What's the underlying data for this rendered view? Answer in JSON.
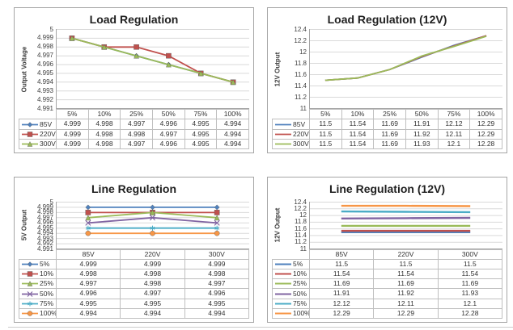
{
  "page": {
    "background": "#ffffff"
  },
  "chart_data": [
    {
      "type": "line",
      "title": "Load Regulation",
      "ylabel": "Output Voltage",
      "xlabel": "",
      "categories": [
        "5%",
        "10%",
        "25%",
        "50%",
        "75%",
        "100%"
      ],
      "ylim": [
        4.991,
        5
      ],
      "yticks": [
        5,
        4.999,
        4.998,
        4.997,
        4.996,
        4.995,
        4.994,
        4.993,
        4.992,
        4.991
      ],
      "grid": true,
      "legend_position": "data-table-left",
      "series": [
        {
          "name": "85V",
          "color": "#4F81BD",
          "marker": "diamond",
          "line_width": 1.8,
          "values": [
            4.999,
            4.998,
            4.997,
            4.996,
            4.995,
            4.994
          ]
        },
        {
          "name": "220V",
          "color": "#C0504D",
          "marker": "square",
          "line_width": 1.8,
          "values": [
            4.999,
            4.998,
            4.998,
            4.997,
            4.995,
            4.994
          ]
        },
        {
          "name": "300V",
          "color": "#9BBB59",
          "marker": "triangle",
          "line_width": 1.8,
          "values": [
            4.999,
            4.998,
            4.997,
            4.996,
            4.995,
            4.994
          ]
        }
      ]
    },
    {
      "type": "line",
      "title": "Load Regulation (12V)",
      "ylabel": "12V Output",
      "xlabel": "",
      "categories": [
        "5%",
        "10%",
        "25%",
        "50%",
        "75%",
        "100%"
      ],
      "ylim": [
        11,
        12.4
      ],
      "yticks": [
        12.4,
        12.2,
        12,
        11.8,
        11.6,
        11.4,
        11.2,
        11
      ],
      "grid": true,
      "legend_position": "data-table-left",
      "series": [
        {
          "name": "85V",
          "color": "#4F81BD",
          "marker": "none",
          "line_width": 1.8,
          "values": [
            11.5,
            11.54,
            11.69,
            11.91,
            12.12,
            12.29
          ]
        },
        {
          "name": "220V",
          "color": "#C0504D",
          "marker": "none",
          "line_width": 1.8,
          "values": [
            11.5,
            11.54,
            11.69,
            11.92,
            12.11,
            12.29
          ]
        },
        {
          "name": "300V",
          "color": "#9BBB59",
          "marker": "none",
          "line_width": 1.8,
          "values": [
            11.5,
            11.54,
            11.69,
            11.93,
            12.1,
            12.28
          ]
        }
      ]
    },
    {
      "type": "line",
      "title": "Line Regulation",
      "ylabel": "5V Output",
      "xlabel": "",
      "categories": [
        "85V",
        "220V",
        "300V"
      ],
      "ylim": [
        4.991,
        5
      ],
      "yticks": [
        5,
        4.999,
        4.998,
        4.997,
        4.996,
        4.995,
        4.994,
        4.993,
        4.992,
        4.991
      ],
      "grid": true,
      "legend_position": "data-table-left",
      "series": [
        {
          "name": "5%",
          "color": "#4F81BD",
          "marker": "diamond",
          "line_width": 1.8,
          "values": [
            4.999,
            4.999,
            4.999
          ]
        },
        {
          "name": "10%",
          "color": "#C0504D",
          "marker": "square",
          "line_width": 1.8,
          "values": [
            4.998,
            4.998,
            4.998
          ]
        },
        {
          "name": "25%",
          "color": "#9BBB59",
          "marker": "triangle",
          "line_width": 1.8,
          "values": [
            4.997,
            4.998,
            4.997
          ]
        },
        {
          "name": "50%",
          "color": "#8064A2",
          "marker": "x",
          "line_width": 1.8,
          "values": [
            4.996,
            4.997,
            4.996
          ]
        },
        {
          "name": "75%",
          "color": "#4BACC6",
          "marker": "asterisk",
          "line_width": 1.8,
          "values": [
            4.995,
            4.995,
            4.995
          ]
        },
        {
          "name": "100%",
          "color": "#F79646",
          "marker": "circle",
          "line_width": 1.8,
          "values": [
            4.994,
            4.994,
            4.994
          ]
        }
      ]
    },
    {
      "type": "line",
      "title": "Line Regulation (12V)",
      "ylabel": "12V Output",
      "xlabel": "",
      "categories": [
        "85V",
        "220V",
        "300V"
      ],
      "ylim": [
        11,
        12.4
      ],
      "yticks": [
        12.4,
        12.2,
        12,
        11.8,
        11.6,
        11.4,
        11.2,
        11
      ],
      "grid": true,
      "legend_position": "data-table-left",
      "series": [
        {
          "name": "5%",
          "color": "#4F81BD",
          "marker": "none",
          "line_width": 2.4,
          "values": [
            11.5,
            11.5,
            11.5
          ]
        },
        {
          "name": "10%",
          "color": "#C0504D",
          "marker": "none",
          "line_width": 2.4,
          "values": [
            11.54,
            11.54,
            11.54
          ]
        },
        {
          "name": "25%",
          "color": "#9BBB59",
          "marker": "none",
          "line_width": 2.4,
          "values": [
            11.69,
            11.69,
            11.69
          ]
        },
        {
          "name": "50%",
          "color": "#8064A2",
          "marker": "none",
          "line_width": 2.4,
          "values": [
            11.91,
            11.92,
            11.93
          ]
        },
        {
          "name": "75%",
          "color": "#4BACC6",
          "marker": "none",
          "line_width": 2.4,
          "values": [
            12.12,
            12.11,
            12.1
          ]
        },
        {
          "name": "100%",
          "color": "#F79646",
          "marker": "none",
          "line_width": 2.4,
          "values": [
            12.29,
            12.29,
            12.28
          ]
        }
      ]
    }
  ]
}
